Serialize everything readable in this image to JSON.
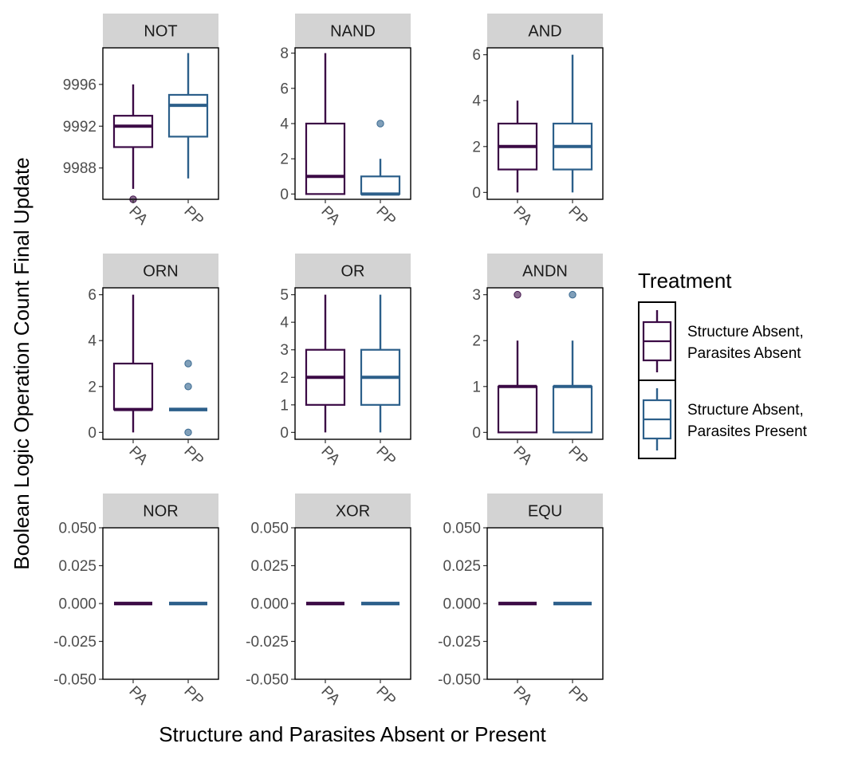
{
  "chart_data": {
    "type": "box",
    "xlabel": "Structure and Parasites Absent or Present",
    "ylabel": "Boolean Logic Operation Count Final Update",
    "categories": [
      "PA",
      "PP"
    ],
    "colors": {
      "PA": "#3b0a45",
      "PP": "#2c5f8a"
    },
    "legend": {
      "title": "Treatment",
      "position": "right",
      "entries": [
        {
          "key": "PA",
          "line1": "Structure Absent,",
          "line2": "Parasites Absent",
          "color": "#3b0a45"
        },
        {
          "key": "PP",
          "line1": "Structure Absent,",
          "line2": "Parasites Present",
          "color": "#2c5f8a"
        }
      ]
    },
    "panels": [
      {
        "name": "NOT",
        "ylim": [
          9985,
          9999.5
        ],
        "yticks": [
          9988,
          9992,
          9996
        ],
        "boxes": [
          {
            "cat": "PA",
            "q1": 9990,
            "median": 9992,
            "q3": 9993,
            "lo": 9986,
            "hi": 9996,
            "outliers": [
              9985
            ]
          },
          {
            "cat": "PP",
            "q1": 9991,
            "median": 9994,
            "q3": 9995,
            "lo": 9987,
            "hi": 9999,
            "outliers": []
          }
        ]
      },
      {
        "name": "NAND",
        "ylim": [
          -0.3,
          8.3
        ],
        "yticks": [
          0,
          2,
          4,
          6,
          8
        ],
        "boxes": [
          {
            "cat": "PA",
            "q1": 0,
            "median": 1,
            "q3": 4,
            "lo": 0,
            "hi": 8,
            "outliers": []
          },
          {
            "cat": "PP",
            "q1": 0,
            "median": 0,
            "q3": 1,
            "lo": 0,
            "hi": 2,
            "outliers": [
              4
            ]
          }
        ]
      },
      {
        "name": "AND",
        "ylim": [
          -0.3,
          6.3
        ],
        "yticks": [
          0,
          2,
          4,
          6
        ],
        "boxes": [
          {
            "cat": "PA",
            "q1": 1,
            "median": 2,
            "q3": 3,
            "lo": 0,
            "hi": 4,
            "outliers": []
          },
          {
            "cat": "PP",
            "q1": 1,
            "median": 2,
            "q3": 3,
            "lo": 0,
            "hi": 6,
            "outliers": []
          }
        ]
      },
      {
        "name": "ORN",
        "ylim": [
          -0.3,
          6.3
        ],
        "yticks": [
          0,
          2,
          4,
          6
        ],
        "boxes": [
          {
            "cat": "PA",
            "q1": 1,
            "median": 1,
            "q3": 3,
            "lo": 0,
            "hi": 6,
            "outliers": []
          },
          {
            "cat": "PP",
            "q1": 1,
            "median": 1,
            "q3": 1,
            "lo": 1,
            "hi": 1,
            "outliers": [
              0,
              2,
              3
            ]
          }
        ]
      },
      {
        "name": "OR",
        "ylim": [
          -0.25,
          5.25
        ],
        "yticks": [
          0,
          1,
          2,
          3,
          4,
          5
        ],
        "boxes": [
          {
            "cat": "PA",
            "q1": 1,
            "median": 2,
            "q3": 3,
            "lo": 0,
            "hi": 5,
            "outliers": []
          },
          {
            "cat": "PP",
            "q1": 1,
            "median": 2,
            "q3": 3,
            "lo": 0,
            "hi": 5,
            "outliers": []
          }
        ]
      },
      {
        "name": "ANDN",
        "ylim": [
          -0.15,
          3.15
        ],
        "yticks": [
          0,
          1,
          2,
          3
        ],
        "boxes": [
          {
            "cat": "PA",
            "q1": 0,
            "median": 1,
            "q3": 1,
            "lo": 0,
            "hi": 2,
            "outliers": [
              3
            ]
          },
          {
            "cat": "PP",
            "q1": 0,
            "median": 1,
            "q3": 1,
            "lo": 0,
            "hi": 2,
            "outliers": [
              3
            ]
          }
        ]
      },
      {
        "name": "NOR",
        "ylim": [
          -0.05,
          0.05
        ],
        "yticks": [
          -0.05,
          -0.025,
          0,
          0.025,
          0.05
        ],
        "yticklabels": [
          "-0.050",
          "-0.025",
          "0.000",
          "0.025",
          "0.050"
        ],
        "boxes": [
          {
            "cat": "PA",
            "q1": 0,
            "median": 0,
            "q3": 0,
            "lo": 0,
            "hi": 0,
            "outliers": []
          },
          {
            "cat": "PP",
            "q1": 0,
            "median": 0,
            "q3": 0,
            "lo": 0,
            "hi": 0,
            "outliers": []
          }
        ]
      },
      {
        "name": "XOR",
        "ylim": [
          -0.05,
          0.05
        ],
        "yticks": [
          -0.05,
          -0.025,
          0,
          0.025,
          0.05
        ],
        "yticklabels": [
          "-0.050",
          "-0.025",
          "0.000",
          "0.025",
          "0.050"
        ],
        "boxes": [
          {
            "cat": "PA",
            "q1": 0,
            "median": 0,
            "q3": 0,
            "lo": 0,
            "hi": 0,
            "outliers": []
          },
          {
            "cat": "PP",
            "q1": 0,
            "median": 0,
            "q3": 0,
            "lo": 0,
            "hi": 0,
            "outliers": []
          }
        ]
      },
      {
        "name": "EQU",
        "ylim": [
          -0.05,
          0.05
        ],
        "yticks": [
          -0.05,
          -0.025,
          0,
          0.025,
          0.05
        ],
        "yticklabels": [
          "-0.050",
          "-0.025",
          "0.000",
          "0.025",
          "0.050"
        ],
        "boxes": [
          {
            "cat": "PA",
            "q1": 0,
            "median": 0,
            "q3": 0,
            "lo": 0,
            "hi": 0,
            "outliers": []
          },
          {
            "cat": "PP",
            "q1": 0,
            "median": 0,
            "q3": 0,
            "lo": 0,
            "hi": 0,
            "outliers": []
          }
        ]
      }
    ]
  }
}
